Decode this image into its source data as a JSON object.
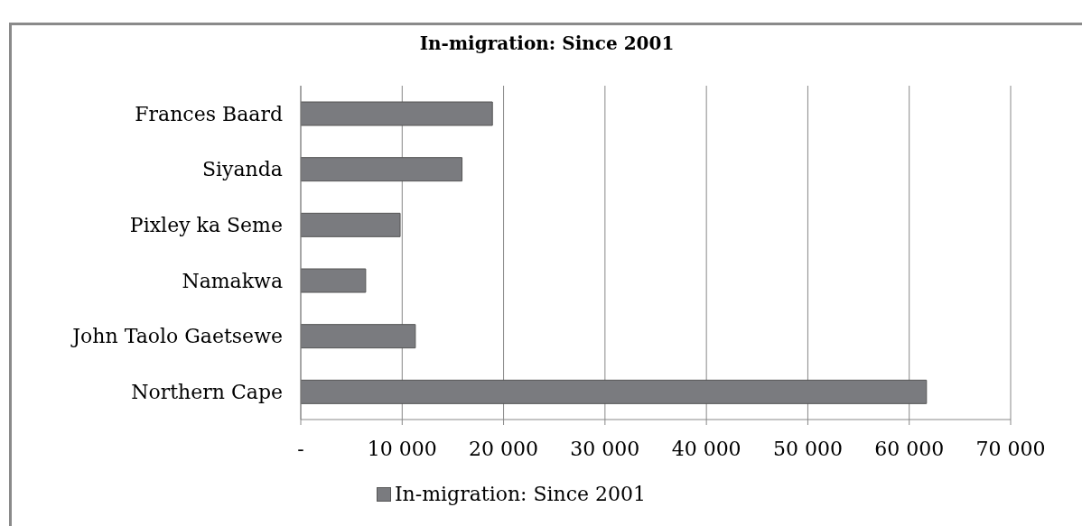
{
  "chart_data": {
    "type": "bar",
    "orientation": "horizontal",
    "title": "In-migration: Since 2001",
    "categories": [
      "Frances Baard",
      "Siyanda",
      "Pixley ka Seme",
      "Namakwa",
      "John Taolo Gaetsewe",
      "Northern Cape"
    ],
    "series": [
      {
        "name": "In-migration: Since 2001",
        "color": "#7a7b7f",
        "values": [
          18900,
          15900,
          9800,
          6400,
          11300,
          61700
        ]
      }
    ],
    "xlim": [
      0,
      70000
    ],
    "xticks": [
      {
        "value": 0,
        "label": "-"
      },
      {
        "value": 10000,
        "label": "10 000"
      },
      {
        "value": 20000,
        "label": "20 000"
      },
      {
        "value": 30000,
        "label": "30 000"
      },
      {
        "value": 40000,
        "label": "40 000"
      },
      {
        "value": 50000,
        "label": "50 000"
      },
      {
        "value": 60000,
        "label": "60 000"
      },
      {
        "value": 70000,
        "label": "70 000"
      }
    ],
    "grid": "x",
    "legend": "bottom"
  }
}
